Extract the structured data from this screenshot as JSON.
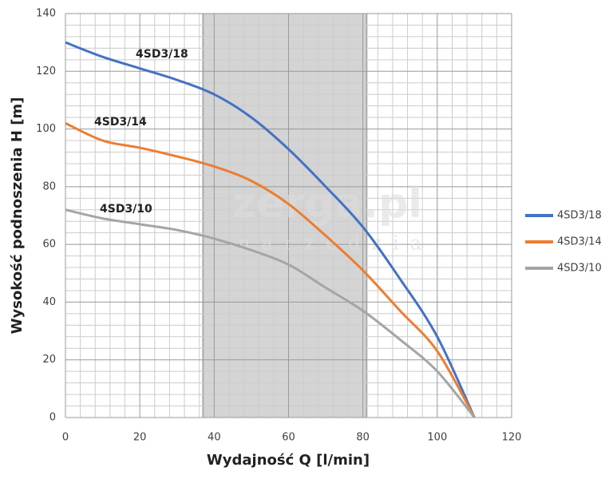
{
  "chart_data": {
    "type": "line",
    "watermark": "zerga.pl",
    "watermark_sub": "narzędzia",
    "xlabel": "Wydajność Q [l/min]",
    "ylabel": "Wysokość podnoszenia H [m]",
    "x": [
      0,
      10,
      20,
      30,
      40,
      50,
      60,
      70,
      80,
      90,
      100,
      110
    ],
    "series": [
      {
        "name": "4SD3/18",
        "color": "#4472c4",
        "values": [
          130,
          125,
          121,
          117,
          112,
          104,
          93,
          80,
          66,
          48,
          28,
          0
        ]
      },
      {
        "name": "4SD3/14",
        "color": "#ed7d31",
        "values": [
          102,
          96,
          93.5,
          90.5,
          87,
          82,
          74,
          63,
          51,
          37,
          23,
          0
        ]
      },
      {
        "name": "4SD3/10",
        "color": "#a5a5a5",
        "values": [
          72,
          69,
          67,
          65,
          62,
          58,
          53,
          45,
          37,
          27,
          16,
          0
        ]
      }
    ],
    "shaded_range": [
      37,
      81
    ],
    "xlim": [
      0,
      120
    ],
    "xticks": [
      0,
      20,
      40,
      60,
      80,
      100,
      120
    ],
    "ylim": [
      0,
      140
    ],
    "yticks": [
      0,
      20,
      40,
      60,
      80,
      100,
      120,
      140
    ],
    "x_minor_ticks": [
      4,
      8,
      12,
      16,
      24,
      28,
      32,
      36,
      44,
      48,
      52,
      56,
      64,
      68,
      72,
      76,
      84,
      88,
      92,
      96,
      104,
      108,
      112,
      116
    ],
    "y_minor_ticks": [
      4,
      8,
      12,
      16,
      24,
      28,
      32,
      36,
      44,
      48,
      52,
      56,
      64,
      68,
      72,
      76,
      84,
      88,
      92,
      96,
      104,
      108,
      112,
      116,
      124,
      128,
      132,
      136
    ],
    "grid": true,
    "legend": "right"
  }
}
